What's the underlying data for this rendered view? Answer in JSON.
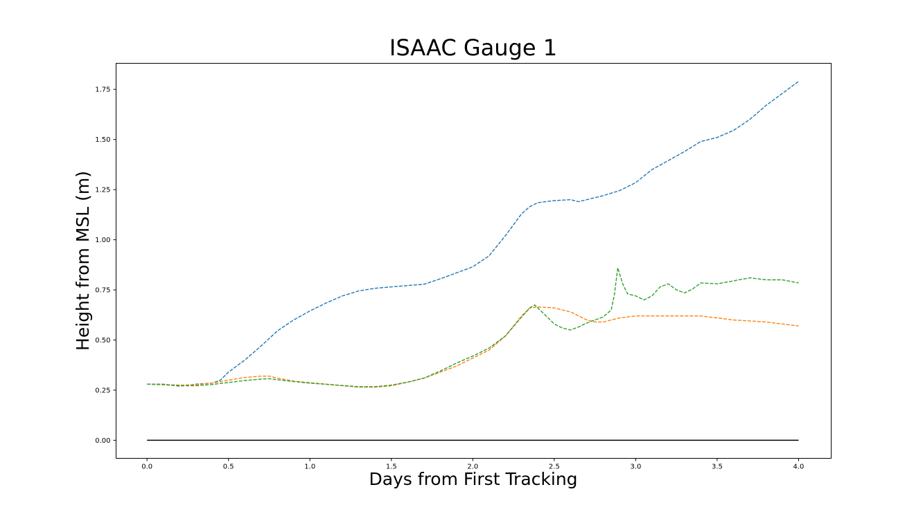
{
  "chart_data": {
    "type": "line",
    "title": "ISAAC Gauge 1",
    "xlabel": "Days from First Tracking",
    "ylabel": "Height from MSL (m)",
    "xlim": [
      -0.19,
      4.2
    ],
    "ylim": [
      -0.09,
      1.88
    ],
    "xticks": [
      "0.0",
      "0.5",
      "1.0",
      "1.5",
      "2.0",
      "2.5",
      "3.0",
      "3.5",
      "4.0"
    ],
    "yticks": [
      "0.00",
      "0.25",
      "0.50",
      "0.75",
      "1.00",
      "1.25",
      "1.50",
      "1.75"
    ],
    "grid": false,
    "legend": "none",
    "series": [
      {
        "color": "#1f77b4",
        "style": "dashed",
        "x": [
          0.0,
          0.1,
          0.2,
          0.3,
          0.4,
          0.45,
          0.5,
          0.6,
          0.7,
          0.8,
          0.9,
          1.0,
          1.1,
          1.2,
          1.3,
          1.4,
          1.5,
          1.6,
          1.7,
          1.8,
          1.9,
          2.0,
          2.1,
          2.2,
          2.3,
          2.35,
          2.4,
          2.5,
          2.6,
          2.65,
          2.7,
          2.8,
          2.9,
          3.0,
          3.1,
          3.2,
          3.3,
          3.4,
          3.5,
          3.6,
          3.7,
          3.8,
          3.9,
          4.0
        ],
        "y": [
          0.28,
          0.28,
          0.27,
          0.28,
          0.285,
          0.3,
          0.34,
          0.4,
          0.47,
          0.545,
          0.6,
          0.645,
          0.685,
          0.72,
          0.745,
          0.758,
          0.765,
          0.772,
          0.778,
          0.805,
          0.835,
          0.865,
          0.92,
          1.02,
          1.13,
          1.165,
          1.185,
          1.195,
          1.2,
          1.19,
          1.2,
          1.22,
          1.245,
          1.285,
          1.35,
          1.395,
          1.44,
          1.49,
          1.51,
          1.545,
          1.6,
          1.67,
          1.73,
          1.79
        ]
      },
      {
        "color": "#ff7f0e",
        "style": "dashed",
        "x": [
          0.0,
          0.1,
          0.2,
          0.3,
          0.4,
          0.5,
          0.6,
          0.7,
          0.75,
          0.8,
          0.9,
          1.0,
          1.1,
          1.2,
          1.3,
          1.4,
          1.5,
          1.6,
          1.7,
          1.8,
          1.9,
          2.0,
          2.1,
          2.2,
          2.3,
          2.35,
          2.4,
          2.5,
          2.6,
          2.7,
          2.75,
          2.8,
          2.9,
          3.0,
          3.2,
          3.4,
          3.6,
          3.8,
          4.0
        ],
        "y": [
          0.28,
          0.278,
          0.275,
          0.277,
          0.285,
          0.3,
          0.313,
          0.32,
          0.32,
          0.31,
          0.295,
          0.287,
          0.28,
          0.272,
          0.265,
          0.265,
          0.272,
          0.29,
          0.31,
          0.34,
          0.37,
          0.41,
          0.45,
          0.52,
          0.62,
          0.66,
          0.665,
          0.66,
          0.64,
          0.6,
          0.59,
          0.59,
          0.61,
          0.62,
          0.62,
          0.62,
          0.6,
          0.59,
          0.57
        ]
      },
      {
        "color": "#2ca02c",
        "style": "dashed",
        "x": [
          0.0,
          0.1,
          0.2,
          0.3,
          0.4,
          0.5,
          0.6,
          0.7,
          0.75,
          0.8,
          0.9,
          1.0,
          1.1,
          1.2,
          1.3,
          1.4,
          1.5,
          1.6,
          1.7,
          1.8,
          1.9,
          2.0,
          2.1,
          2.2,
          2.3,
          2.35,
          2.38,
          2.45,
          2.5,
          2.55,
          2.6,
          2.65,
          2.7,
          2.75,
          2.8,
          2.85,
          2.87,
          2.89,
          2.92,
          2.95,
          3.0,
          3.05,
          3.1,
          3.15,
          3.2,
          3.25,
          3.3,
          3.35,
          3.4,
          3.5,
          3.6,
          3.7,
          3.8,
          3.9,
          4.0
        ],
        "y": [
          0.28,
          0.277,
          0.272,
          0.272,
          0.278,
          0.288,
          0.298,
          0.305,
          0.307,
          0.302,
          0.293,
          0.285,
          0.279,
          0.273,
          0.267,
          0.267,
          0.275,
          0.29,
          0.31,
          0.345,
          0.385,
          0.42,
          0.46,
          0.52,
          0.615,
          0.66,
          0.675,
          0.62,
          0.58,
          0.56,
          0.55,
          0.565,
          0.585,
          0.6,
          0.615,
          0.65,
          0.73,
          0.86,
          0.78,
          0.73,
          0.72,
          0.7,
          0.72,
          0.765,
          0.78,
          0.75,
          0.735,
          0.755,
          0.785,
          0.78,
          0.795,
          0.81,
          0.8,
          0.8,
          0.785
        ]
      },
      {
        "color": "#000000",
        "style": "solid",
        "x": [
          0.0,
          4.0
        ],
        "y": [
          0.0,
          0.0
        ]
      }
    ]
  }
}
